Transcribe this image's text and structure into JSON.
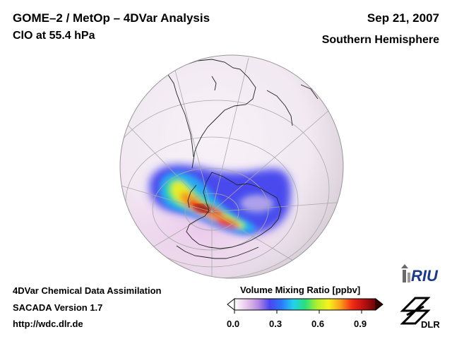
{
  "header": {
    "title": "GOME–2 / MetOp – 4DVar Analysis",
    "subtitle": "ClO at 55.4 hPa",
    "date": "Sep 21, 2007",
    "region": "Southern Hemisphere"
  },
  "footer": {
    "line1": "4DVar Chemical Data Assimilation",
    "line2": "SACADA Version 1.7",
    "line3": "http://wdc.dlr.de"
  },
  "colorbar": {
    "title": "Volume Mixing Ratio [ppbv]",
    "min": 0.0,
    "max": 1.0,
    "ticks": [
      {
        "value": 0.0,
        "label": "0.0"
      },
      {
        "value": 0.3,
        "label": "0.3"
      },
      {
        "value": 0.6,
        "label": "0.6"
      },
      {
        "value": 0.9,
        "label": "0.9"
      }
    ],
    "colors": [
      "#ffffff",
      "#e8c8ec",
      "#b98de0",
      "#4a44f0",
      "#2a7af8",
      "#25d0ee",
      "#29e07a",
      "#b0f02e",
      "#f6f21e",
      "#f8a01a",
      "#f22a14",
      "#b81010",
      "#6a0606"
    ]
  },
  "logos": {
    "riu": "RIU",
    "dlr": "DLR"
  },
  "map": {
    "projection": "orthographic",
    "hemisphere": "south",
    "field": "ClO volume mixing ratio",
    "max_value_ppbv": 0.95
  }
}
